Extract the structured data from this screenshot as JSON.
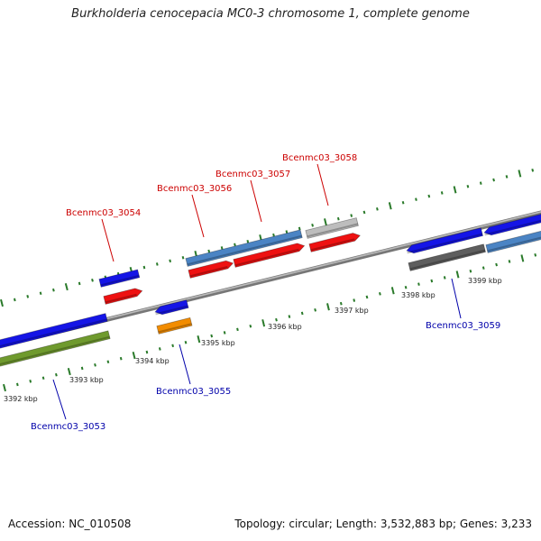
{
  "title": "Burkholderia cenocepacia MC0-3 chromosome 1, complete genome",
  "footer": {
    "accession": "Accession: NC_010508",
    "summary": "Topology: circular; Length: 3,532,883 bp; Genes: 3,233"
  },
  "colors": {
    "backbone": "#888888",
    "tick": "#2a7a2a",
    "top_label": "#cc0000",
    "bottom_label": "#0000aa",
    "kbp_text": "#222222"
  },
  "scale_labels": [
    "3392 kbp",
    "3393 kbp",
    "3394 kbp",
    "3395 kbp",
    "3396 kbp",
    "3397 kbp",
    "3398 kbp",
    "3399 kbp"
  ],
  "gene_labels_top": [
    "Bcenmc03_3054",
    "Bcenmc03_3056",
    "Bcenmc03_3057",
    "Bcenmc03_3058"
  ],
  "gene_labels_bottom": [
    "Bcenmc03_3053",
    "Bcenmc03_3055",
    "Bcenmc03_3059"
  ],
  "feature_colors": {
    "gene_blue": "#1515e6",
    "cds_red": "#ee1111",
    "steelblue": "#4b84c4",
    "olive": "#6f9a2e",
    "orange": "#f28c00",
    "gray": "#bdbdbd",
    "darkgray": "#5e5e5e"
  }
}
